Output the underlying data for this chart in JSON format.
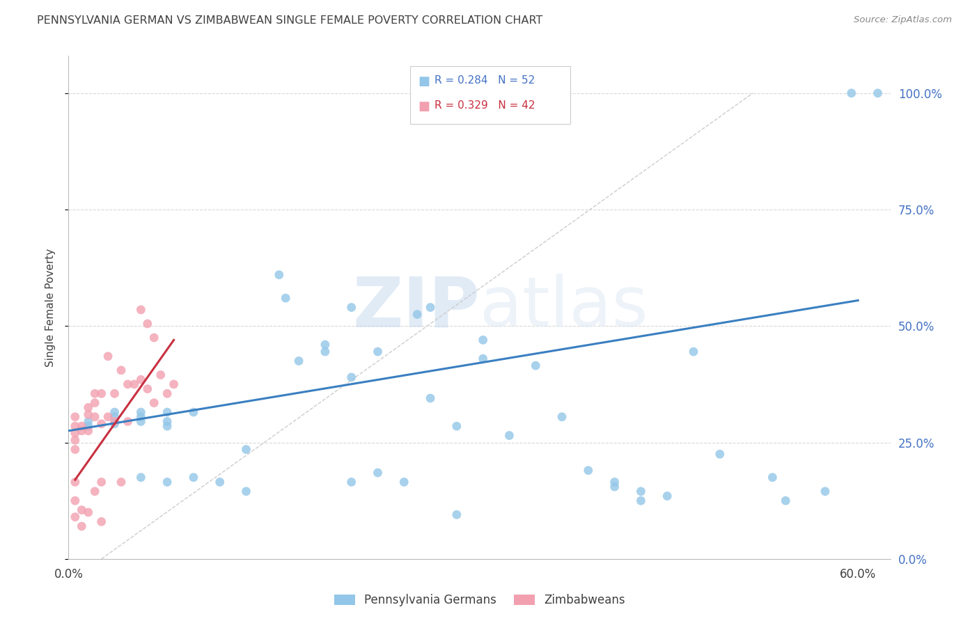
{
  "title": "PENNSYLVANIA GERMAN VS ZIMBABWEAN SINGLE FEMALE POVERTY CORRELATION CHART",
  "source": "Source: ZipAtlas.com",
  "ylabel": "Single Female Poverty",
  "watermark_zip": "ZIP",
  "watermark_atlas": "atlas",
  "legend_blue_r": "R = 0.284",
  "legend_blue_n": "N = 52",
  "legend_pink_r": "R = 0.329",
  "legend_pink_n": "N = 42",
  "legend_blue_label": "Pennsylvania Germans",
  "legend_pink_label": "Zimbabweans",
  "xlim": [
    0.0,
    0.625
  ],
  "ylim": [
    0.0,
    1.08
  ],
  "yticks": [
    0.0,
    0.25,
    0.5,
    0.75,
    1.0
  ],
  "ytick_labels": [
    "0.0%",
    "25.0%",
    "50.0%",
    "75.0%",
    "100.0%"
  ],
  "xticks": [
    0.0,
    0.1,
    0.2,
    0.3,
    0.4,
    0.5,
    0.6
  ],
  "blue_dot_color": "#93c6e8",
  "pink_dot_color": "#f2a0b0",
  "blue_line_color": "#3a7fc1",
  "pink_line_color": "#c83040",
  "diag_line_color": "#cccccc",
  "axis_label_color": "#4472c4",
  "text_color": "#404040",
  "grid_color": "#d8d8d8",
  "background_color": "#ffffff",
  "blue_scatter_x": [
    0.295,
    0.16,
    0.165,
    0.215,
    0.265,
    0.275,
    0.315,
    0.315,
    0.235,
    0.195,
    0.175,
    0.195,
    0.215,
    0.135,
    0.075,
    0.035,
    0.035,
    0.055,
    0.055,
    0.075,
    0.075,
    0.095,
    0.015,
    0.015,
    0.035,
    0.055,
    0.375,
    0.395,
    0.415,
    0.435,
    0.295,
    0.335,
    0.275,
    0.355,
    0.495,
    0.535,
    0.545,
    0.575,
    0.475,
    0.415,
    0.435,
    0.455,
    0.235,
    0.255,
    0.115,
    0.135,
    0.215,
    0.095,
    0.055,
    0.075,
    0.615,
    0.595
  ],
  "blue_scatter_y": [
    0.095,
    0.61,
    0.56,
    0.54,
    0.525,
    0.54,
    0.47,
    0.43,
    0.445,
    0.46,
    0.425,
    0.445,
    0.39,
    0.235,
    0.315,
    0.315,
    0.305,
    0.305,
    0.295,
    0.295,
    0.285,
    0.315,
    0.295,
    0.285,
    0.29,
    0.315,
    0.305,
    0.19,
    0.165,
    0.125,
    0.285,
    0.265,
    0.345,
    0.415,
    0.225,
    0.175,
    0.125,
    0.145,
    0.445,
    0.155,
    0.145,
    0.135,
    0.185,
    0.165,
    0.165,
    0.145,
    0.165,
    0.175,
    0.175,
    0.165,
    1.0,
    1.0
  ],
  "pink_scatter_x": [
    0.005,
    0.005,
    0.005,
    0.005,
    0.005,
    0.005,
    0.005,
    0.005,
    0.01,
    0.01,
    0.01,
    0.01,
    0.015,
    0.015,
    0.015,
    0.015,
    0.02,
    0.02,
    0.02,
    0.02,
    0.025,
    0.025,
    0.025,
    0.025,
    0.03,
    0.03,
    0.035,
    0.035,
    0.04,
    0.04,
    0.045,
    0.045,
    0.05,
    0.055,
    0.06,
    0.065,
    0.07,
    0.075,
    0.08,
    0.055,
    0.06,
    0.065
  ],
  "pink_scatter_y": [
    0.305,
    0.285,
    0.27,
    0.255,
    0.235,
    0.165,
    0.125,
    0.09,
    0.285,
    0.275,
    0.105,
    0.07,
    0.325,
    0.31,
    0.275,
    0.1,
    0.355,
    0.335,
    0.305,
    0.145,
    0.355,
    0.29,
    0.165,
    0.08,
    0.435,
    0.305,
    0.355,
    0.295,
    0.405,
    0.165,
    0.375,
    0.295,
    0.375,
    0.385,
    0.365,
    0.335,
    0.395,
    0.355,
    0.375,
    0.535,
    0.505,
    0.475
  ],
  "blue_line_x": [
    0.0,
    0.6
  ],
  "blue_line_y": [
    0.275,
    0.555
  ],
  "pink_line_x": [
    0.005,
    0.08
  ],
  "pink_line_y": [
    0.17,
    0.47
  ],
  "diag_line_x": [
    0.025,
    0.52
  ],
  "diag_line_y": [
    0.0,
    1.0
  ]
}
